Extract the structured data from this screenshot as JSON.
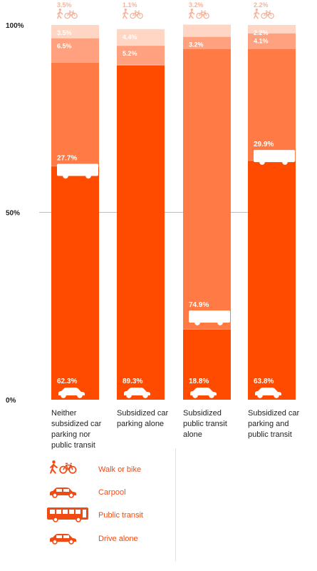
{
  "colors": {
    "drive_alone": "#ff4b00",
    "public_transit": "#ff7a45",
    "carpool": "#ffa07e",
    "walk_or_bike": "#ffd6c4",
    "top_label": "#f7b29a",
    "legend_text": "#f04b14"
  },
  "legend": [
    {
      "key": "walk_or_bike",
      "label": "Walk or bike",
      "icon": "walk-bike-icon"
    },
    {
      "key": "carpool",
      "label": "Carpool",
      "icon": "car-icon"
    },
    {
      "key": "public_transit",
      "label": "Public transit",
      "icon": "bus-icon"
    },
    {
      "key": "drive_alone",
      "label": "Drive alone",
      "icon": "car-icon"
    }
  ],
  "chart_data": {
    "type": "bar",
    "stacked": true,
    "ylim": [
      0,
      100
    ],
    "y_ticks": [
      "0%",
      "50%",
      "100%"
    ],
    "gridline_at": 50,
    "categories": [
      "Neither subsidized car parking nor public transit",
      "Subsidized car parking alone",
      "Subsidized public transit alone",
      "Subsidized car parking and public transit"
    ],
    "category_lines": [
      [
        "Neither",
        "subsidized car",
        "parking nor",
        "public transit"
      ],
      [
        "Subsidized car",
        "parking alone"
      ],
      [
        "Subsidized",
        "public transit",
        "alone"
      ],
      [
        "Subsidized car",
        "parking and",
        "public transit"
      ]
    ],
    "series": [
      {
        "key": "drive_alone",
        "name": "Drive alone",
        "values": [
          62.3,
          89.3,
          18.8,
          63.8
        ],
        "labels": [
          "62.3%",
          "89.3%",
          "18.8%",
          "63.8%"
        ]
      },
      {
        "key": "public_transit",
        "name": "Public transit",
        "values": [
          27.7,
          0,
          74.9,
          29.9
        ],
        "labels": [
          "27.7%",
          "",
          "74.9%",
          "29.9%"
        ]
      },
      {
        "key": "carpool",
        "name": "Carpool",
        "values": [
          6.5,
          5.2,
          3.2,
          4.1
        ],
        "labels": [
          "6.5%",
          "5.2%",
          "3.2%",
          "4.1%"
        ]
      },
      {
        "key": "walk_or_bike",
        "name": "Walk or bike",
        "values": [
          3.5,
          4.4,
          3.2,
          2.2
        ],
        "labels": [
          "3.5%",
          "4.4%",
          "",
          "2.2%"
        ]
      }
    ],
    "top_labels": [
      "3.5%",
      "1.1%",
      "3.2%",
      "2.2%"
    ]
  }
}
